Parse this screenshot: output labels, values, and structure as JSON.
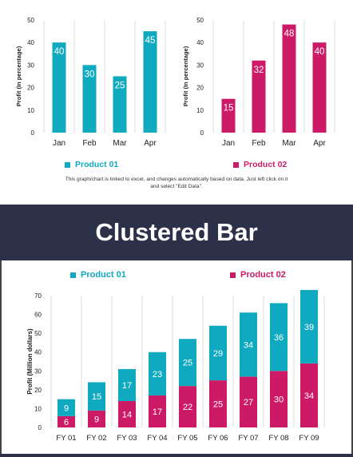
{
  "colors": {
    "product1": "#0fa9c0",
    "product2": "#cc1a66",
    "banner_bg": "#2c3048"
  },
  "note": {
    "line1": "This graph/chart is linked to excel, and changes automatically based on data. Just left click on it",
    "line2": "and select \"Edit Data\"."
  },
  "banner": {
    "title": "Clustered Bar"
  },
  "chart_data": [
    {
      "type": "bar",
      "categories": [
        "Jan",
        "Feb",
        "Mar",
        "Apr"
      ],
      "values": [
        40,
        30,
        25,
        45
      ],
      "ylabel": "Profit  (In percentage)",
      "ylim": [
        0,
        50
      ],
      "yticks": [
        0,
        10,
        20,
        30,
        40,
        50
      ],
      "series_name": "Product 01",
      "color": "#0fa9c0",
      "grid": "vertical",
      "legend": "bottom"
    },
    {
      "type": "bar",
      "categories": [
        "Jan",
        "Feb",
        "Mar",
        "Apr"
      ],
      "values": [
        15,
        32,
        48,
        40
      ],
      "ylabel": "Profit  (In percentage)",
      "ylim": [
        0,
        50
      ],
      "yticks": [
        0,
        10,
        20,
        30,
        40,
        50
      ],
      "series_name": "Product 02",
      "color": "#cc1a66",
      "grid": "vertical",
      "legend": "bottom"
    },
    {
      "type": "bar",
      "stacked": true,
      "categories": [
        "FY 01",
        "FY 02",
        "FY 03",
        "FY 04",
        "FY 05",
        "FY 06",
        "FY 07",
        "FY 08",
        "FY 09"
      ],
      "series": [
        {
          "name": "Product 02",
          "values": [
            6,
            9,
            14,
            17,
            22,
            25,
            27,
            30,
            34
          ],
          "color": "#cc1a66"
        },
        {
          "name": "Product 01",
          "values": [
            9,
            15,
            17,
            23,
            25,
            29,
            34,
            36,
            39
          ],
          "color": "#0fa9c0"
        }
      ],
      "ylabel": "Profit  (Million dollars)",
      "ylim": [
        0,
        70
      ],
      "yticks": [
        0,
        10,
        20,
        30,
        40,
        50,
        60,
        70
      ],
      "grid": "vertical",
      "legend": "top"
    }
  ]
}
